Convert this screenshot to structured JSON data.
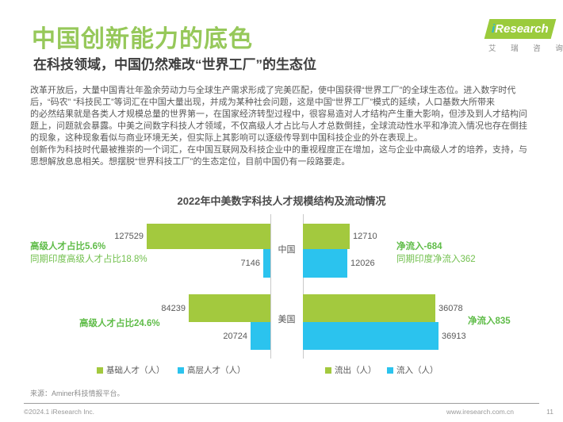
{
  "header": {
    "title": "中国创新能力的底色",
    "subtitle": "在科技领域，中国仍然难改“世界工厂”的生态位",
    "logo": {
      "brand_i": "i",
      "brand_rest": "Research",
      "brand_cn": "艾 瑞 咨 询"
    }
  },
  "body": {
    "paragraph1": "改革开放后，大量中国青壮年盈余劳动力与全球生产需求形成了完美匹配，使中国获得“世界工厂”的全球生态位。进入数字时代\n后，“码农” “科技民工”等词汇在中国大量出现，并成为某种社会问题，这是中国“世界工厂”模式的延续，人口基数大所带来\n的必然结果就是各类人才规模总量的世界第一，在国家经济转型过程中，很容易造对人才结构产生重大影响，但涉及到人才结构问\n题上，问题就会暴露。中美之间数字科技人才领域，不仅高级人才占比与人才总数倒挂，全球流动性水平和净流入情况也存在倒挂\n的现象，这种现象看似与商业环境无关，但实际上其影响可以逐级传导到中国科技企业的外在表现上。",
    "paragraph2": "创新作为科技时代最被推崇的一个词汇，在中国互联网及科技企业中的重视程度正在增加，这与企业中高级人才的培养，支持，与\n思想解放息息相关。想摆脱“世界科技工厂”的生态定位，目前中国仍有一段路要走。"
  },
  "chart_data": {
    "type": "bar",
    "variant": "butterfly",
    "title": "2022年中美数字科技人才规模结构及流动情况",
    "groups": [
      "中国",
      "美国"
    ],
    "left_panel": {
      "series": [
        {
          "name": "基础人才（人）",
          "color": "#A3C93E",
          "values": [
            127529,
            84239
          ]
        },
        {
          "name": "高层人才（人）",
          "color": "#2BC3EE",
          "values": [
            7146,
            20724
          ]
        }
      ],
      "max": 127529
    },
    "right_panel": {
      "series": [
        {
          "name": "流出（人）",
          "color": "#A3C93E",
          "values": [
            12710,
            36078
          ]
        },
        {
          "name": "流入（人）",
          "color": "#2BC3EE",
          "values": [
            12026,
            36913
          ]
        }
      ],
      "max": 36913
    },
    "annotations": [
      {
        "id": "cn-left-main",
        "text": "高级人才占比5.6%",
        "bold": true
      },
      {
        "id": "cn-left-sub",
        "text": "同期印度高级人才占比18.8%",
        "bold": false
      },
      {
        "id": "cn-right-main",
        "text": "净流入-684",
        "bold": true
      },
      {
        "id": "cn-right-sub",
        "text": "同期印度净流入362",
        "bold": false
      },
      {
        "id": "us-left-main",
        "text": "高级人才占比24.6%",
        "bold": true
      },
      {
        "id": "us-right-main",
        "text": "净流入835",
        "bold": true
      }
    ],
    "legend": [
      "基础人才（人）",
      "高层人才（人）",
      "流出（人）",
      "流入（人）"
    ],
    "legend_colors": [
      "#A3C93E",
      "#2BC3EE",
      "#A3C93E",
      "#2BC3EE"
    ],
    "grid": false,
    "legend_position": "bottom"
  },
  "colors": {
    "brand_green": "#96C85A",
    "bar_green": "#A3C93E",
    "bar_blue": "#2BC3EE",
    "annotation_green": "#5FBC48"
  },
  "footer": {
    "source": "来源：Aminer科技情报平台。",
    "copyright": "©2024.1 iResearch Inc.",
    "site": "www.iresearch.com.cn",
    "page_number": "11"
  }
}
